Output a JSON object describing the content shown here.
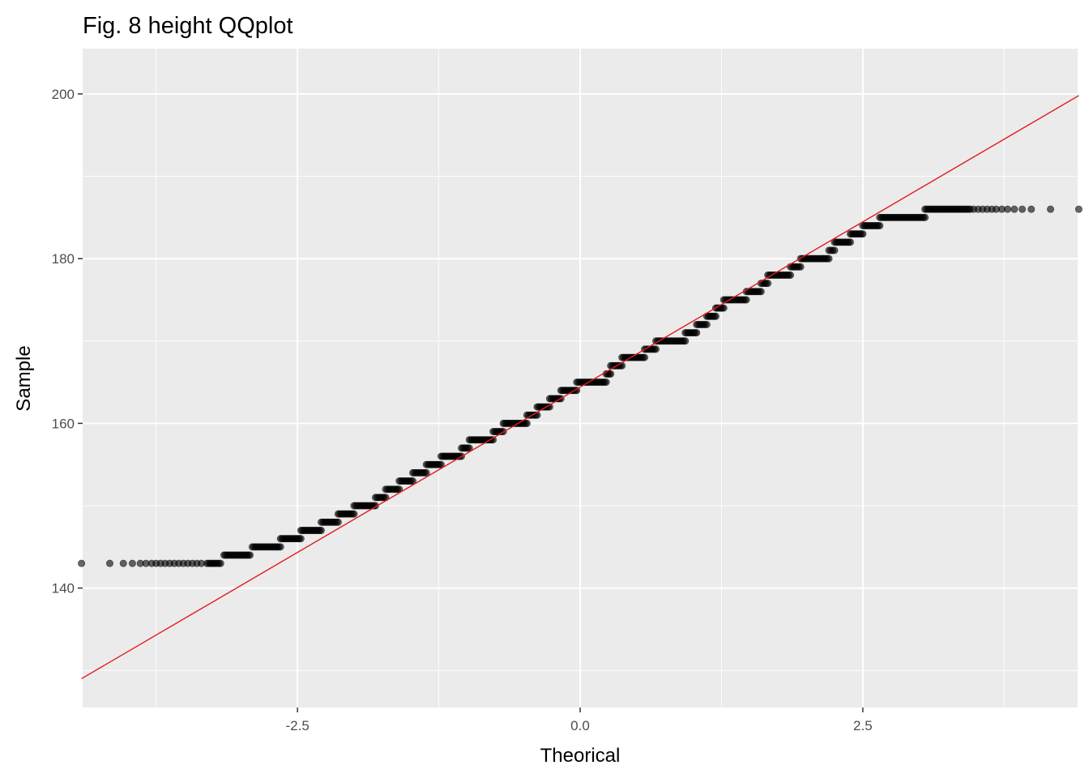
{
  "chart_data": {
    "type": "scatter",
    "title": "Fig. 8 height QQplot",
    "xlabel": "Theorical",
    "ylabel": "Sample",
    "xlim": [
      -4.4,
      4.4
    ],
    "ylim": [
      125.5,
      205.5
    ],
    "x_ticks": [
      -2.5,
      0.0,
      2.5
    ],
    "x_tick_labels": [
      "-2.5",
      "0.0",
      "2.5"
    ],
    "y_ticks": [
      140,
      160,
      180,
      200
    ],
    "y_tick_labels": [
      "140",
      "160",
      "180",
      "200"
    ],
    "grid": true,
    "legend": "none",
    "background": "#ebebeb",
    "grid_color": "#ffffff",
    "point_color": "#000000",
    "point_opacity": 0.6,
    "line_color": "#e41a1c",
    "reference_line": {
      "x": [
        -4.41,
        4.41
      ],
      "y": [
        129.0,
        199.8
      ]
    },
    "steps": [
      {
        "y": 143,
        "x_start": -3.3,
        "x_end": -3.18
      },
      {
        "y": 144,
        "x_start": -3.15,
        "x_end": -2.92
      },
      {
        "y": 145,
        "x_start": -2.9,
        "x_end": -2.65
      },
      {
        "y": 146,
        "x_start": -2.65,
        "x_end": -2.47
      },
      {
        "y": 147,
        "x_start": -2.47,
        "x_end": -2.29
      },
      {
        "y": 148,
        "x_start": -2.29,
        "x_end": -2.14
      },
      {
        "y": 149,
        "x_start": -2.14,
        "x_end": -2.0
      },
      {
        "y": 150,
        "x_start": -2.0,
        "x_end": -1.81
      },
      {
        "y": 151,
        "x_start": -1.81,
        "x_end": -1.72
      },
      {
        "y": 152,
        "x_start": -1.72,
        "x_end": -1.6
      },
      {
        "y": 153,
        "x_start": -1.6,
        "x_end": -1.48
      },
      {
        "y": 154,
        "x_start": -1.48,
        "x_end": -1.36
      },
      {
        "y": 155,
        "x_start": -1.36,
        "x_end": -1.23
      },
      {
        "y": 156,
        "x_start": -1.23,
        "x_end": -1.05
      },
      {
        "y": 157,
        "x_start": -1.05,
        "x_end": -0.98
      },
      {
        "y": 158,
        "x_start": -0.98,
        "x_end": -0.77
      },
      {
        "y": 159,
        "x_start": -0.77,
        "x_end": -0.68
      },
      {
        "y": 160,
        "x_start": -0.68,
        "x_end": -0.47
      },
      {
        "y": 161,
        "x_start": -0.47,
        "x_end": -0.38
      },
      {
        "y": 162,
        "x_start": -0.38,
        "x_end": -0.27
      },
      {
        "y": 163,
        "x_start": -0.27,
        "x_end": -0.17
      },
      {
        "y": 164,
        "x_start": -0.17,
        "x_end": -0.03
      },
      {
        "y": 165,
        "x_start": -0.03,
        "x_end": 0.23
      },
      {
        "y": 166,
        "x_start": 0.23,
        "x_end": 0.27
      },
      {
        "y": 167,
        "x_start": 0.27,
        "x_end": 0.37
      },
      {
        "y": 168,
        "x_start": 0.37,
        "x_end": 0.57
      },
      {
        "y": 169,
        "x_start": 0.57,
        "x_end": 0.67
      },
      {
        "y": 170,
        "x_start": 0.67,
        "x_end": 0.93
      },
      {
        "y": 171,
        "x_start": 0.93,
        "x_end": 1.03
      },
      {
        "y": 172,
        "x_start": 1.03,
        "x_end": 1.12
      },
      {
        "y": 173,
        "x_start": 1.12,
        "x_end": 1.2
      },
      {
        "y": 174,
        "x_start": 1.2,
        "x_end": 1.27
      },
      {
        "y": 175,
        "x_start": 1.27,
        "x_end": 1.47
      },
      {
        "y": 176,
        "x_start": 1.47,
        "x_end": 1.6
      },
      {
        "y": 177,
        "x_start": 1.6,
        "x_end": 1.66
      },
      {
        "y": 178,
        "x_start": 1.66,
        "x_end": 1.86
      },
      {
        "y": 179,
        "x_start": 1.86,
        "x_end": 1.95
      },
      {
        "y": 180,
        "x_start": 1.95,
        "x_end": 2.2
      },
      {
        "y": 181,
        "x_start": 2.2,
        "x_end": 2.25
      },
      {
        "y": 182,
        "x_start": 2.25,
        "x_end": 2.39
      },
      {
        "y": 183,
        "x_start": 2.39,
        "x_end": 2.5
      },
      {
        "y": 184,
        "x_start": 2.5,
        "x_end": 2.65
      },
      {
        "y": 185,
        "x_start": 2.65,
        "x_end": 3.05
      },
      {
        "y": 186,
        "x_start": 3.05,
        "x_end": 3.45
      }
    ],
    "tail_points": [
      {
        "x": -4.41,
        "y": 143
      },
      {
        "x": -4.16,
        "y": 143
      },
      {
        "x": -4.04,
        "y": 143
      },
      {
        "x": -3.96,
        "y": 143
      },
      {
        "x": -3.89,
        "y": 143
      },
      {
        "x": -3.84,
        "y": 143
      },
      {
        "x": -3.79,
        "y": 143
      },
      {
        "x": -3.75,
        "y": 143
      },
      {
        "x": -3.71,
        "y": 143
      },
      {
        "x": -3.67,
        "y": 143
      },
      {
        "x": -3.63,
        "y": 143
      },
      {
        "x": -3.59,
        "y": 143
      },
      {
        "x": -3.55,
        "y": 143
      },
      {
        "x": -3.51,
        "y": 143
      },
      {
        "x": -3.47,
        "y": 143
      },
      {
        "x": -3.43,
        "y": 143
      },
      {
        "x": -3.39,
        "y": 143
      },
      {
        "x": -3.35,
        "y": 143
      },
      {
        "x": 3.48,
        "y": 186
      },
      {
        "x": 3.52,
        "y": 186
      },
      {
        "x": 3.56,
        "y": 186
      },
      {
        "x": 3.6,
        "y": 186
      },
      {
        "x": 3.64,
        "y": 186
      },
      {
        "x": 3.68,
        "y": 186
      },
      {
        "x": 3.73,
        "y": 186
      },
      {
        "x": 3.78,
        "y": 186
      },
      {
        "x": 3.84,
        "y": 186
      },
      {
        "x": 3.91,
        "y": 186
      },
      {
        "x": 3.99,
        "y": 186
      },
      {
        "x": 4.16,
        "y": 186
      },
      {
        "x": 4.41,
        "y": 186
      }
    ]
  }
}
